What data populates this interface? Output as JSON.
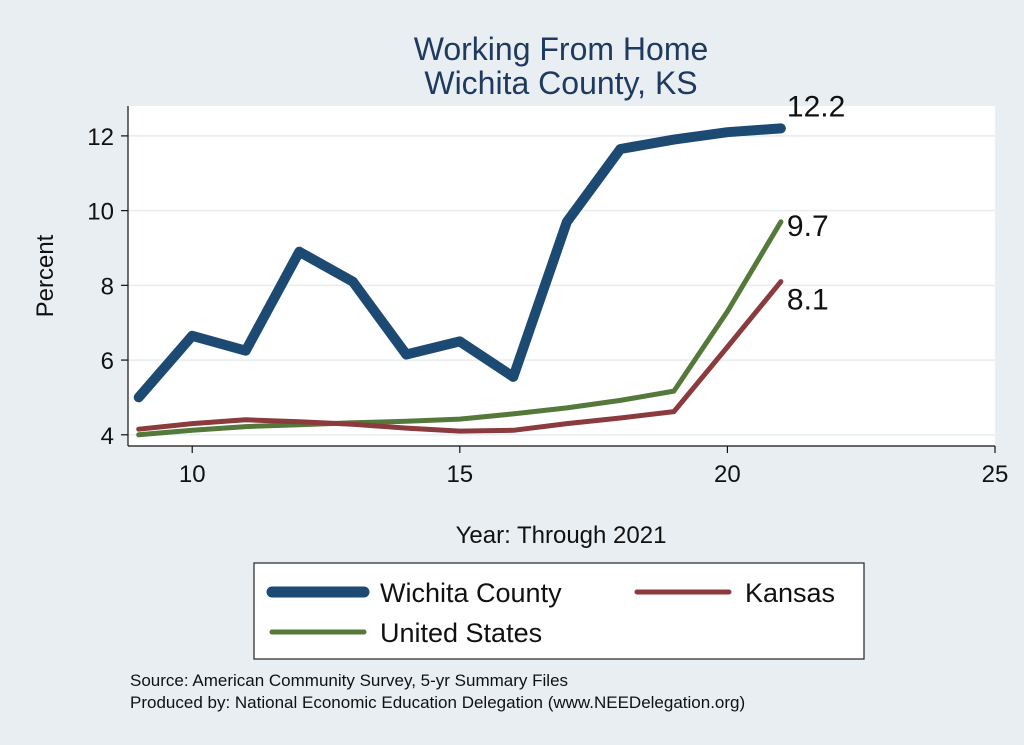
{
  "chart_data": {
    "type": "line",
    "title": [
      "Working From Home",
      "Wichita County, KS"
    ],
    "xlabel": "Year: Through 2021",
    "ylabel": "Percent",
    "xlim": [
      8.8,
      25
    ],
    "ylim": [
      3.7,
      12.8
    ],
    "xticks": [
      10,
      15,
      20,
      25
    ],
    "yticks": [
      4,
      6,
      8,
      10,
      12
    ],
    "grid": true,
    "legend_position": "bottom",
    "series": [
      {
        "name": "Wichita County",
        "color": "#1c4a73",
        "x": [
          9,
          10,
          11,
          12,
          13,
          14,
          15,
          16,
          17,
          18,
          19,
          20,
          21
        ],
        "values": [
          5.0,
          6.65,
          6.25,
          8.9,
          8.1,
          6.15,
          6.5,
          5.55,
          9.7,
          11.65,
          11.9,
          12.1,
          12.2
        ],
        "end_label": "12.2"
      },
      {
        "name": "Kansas",
        "color": "#8b3a3e",
        "x": [
          9,
          10,
          11,
          12,
          13,
          14,
          15,
          16,
          17,
          18,
          19,
          20,
          21
        ],
        "values": [
          4.15,
          4.3,
          4.4,
          4.35,
          4.28,
          4.18,
          4.1,
          4.12,
          4.3,
          4.45,
          4.62,
          6.35,
          8.1
        ],
        "end_label": "8.1"
      },
      {
        "name": "United States",
        "color": "#55793a",
        "x": [
          9,
          10,
          11,
          12,
          13,
          14,
          15,
          16,
          17,
          18,
          19,
          20,
          21
        ],
        "values": [
          4.0,
          4.12,
          4.22,
          4.27,
          4.32,
          4.36,
          4.42,
          4.56,
          4.72,
          4.92,
          5.17,
          7.3,
          9.7
        ],
        "end_label": "9.7"
      }
    ],
    "legend": [
      {
        "label": "Wichita County",
        "color": "#1c4a73"
      },
      {
        "label": "Kansas",
        "color": "#8b3a3e"
      },
      {
        "label": "United States",
        "color": "#55793a"
      }
    ],
    "notes": [
      "Source: American Community Survey, 5-yr Summary Files",
      "Produced by: National Economic Education Delegation (www.NEEDelegation.org)"
    ]
  }
}
